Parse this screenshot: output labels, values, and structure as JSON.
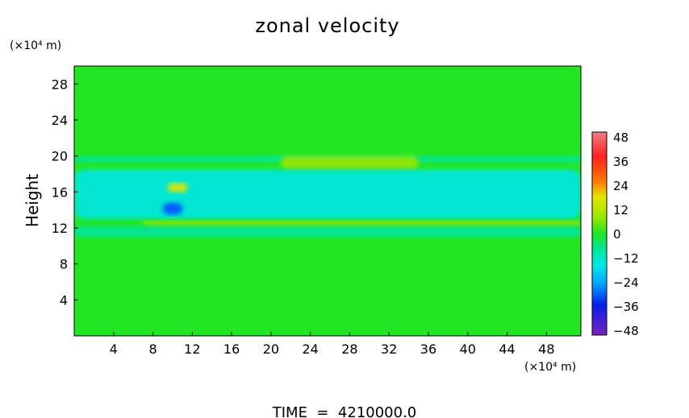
{
  "chart_data": {
    "type": "heatmap",
    "title": "zonal velocity",
    "ylabel": "Height",
    "xlabel": "",
    "y_unit": "(×10⁴ m)",
    "x_unit": "(×10⁴ m)",
    "xlim": [
      0,
      51.5
    ],
    "ylim": [
      0,
      30
    ],
    "x_ticks": [
      "4",
      "8",
      "12",
      "16",
      "20",
      "24",
      "28",
      "32",
      "36",
      "40",
      "44",
      "48"
    ],
    "y_ticks": [
      "4",
      "8",
      "12",
      "16",
      "20",
      "24",
      "28"
    ],
    "colorbar_ticks": [
      "48",
      "36",
      "24",
      "12",
      "0",
      "−12",
      "−24",
      "−36",
      "−48"
    ],
    "colorbar_range": [
      -48,
      48
    ],
    "footer": "TIME  =  4210000.0",
    "colors": {
      "background_field": "#22e622",
      "positive_low": "#9be600",
      "positive_mid": "#e6e600",
      "negative_low": "#00e6a0",
      "negative_mid": "#00e6e6",
      "negative_high": "#0050ff"
    },
    "features": [
      {
        "name": "upper-shear-band",
        "x": [
          0,
          51.5
        ],
        "y": [
          19.3,
          20.0
        ],
        "value": -10
      },
      {
        "name": "positive-jet",
        "x": [
          21,
          35
        ],
        "y": [
          18.5,
          20.0
        ],
        "value": 16
      },
      {
        "name": "mid-negative-band",
        "x": [
          0,
          51.5
        ],
        "y": [
          13.0,
          18.5
        ],
        "value": -12
      },
      {
        "name": "positive-core",
        "x": [
          9.5,
          11.5
        ],
        "y": [
          16.0,
          17.0
        ],
        "value": 22
      },
      {
        "name": "strong-negative-core",
        "x": [
          9.0,
          11.0
        ],
        "y": [
          13.5,
          14.8
        ],
        "value": -34
      },
      {
        "name": "lower-positive-band",
        "x": [
          7,
          51.5
        ],
        "y": [
          12.2,
          12.8
        ],
        "value": 6
      },
      {
        "name": "lower-negative-band",
        "x": [
          0,
          51.5
        ],
        "y": [
          11.0,
          12.2
        ],
        "value": -10
      }
    ]
  }
}
